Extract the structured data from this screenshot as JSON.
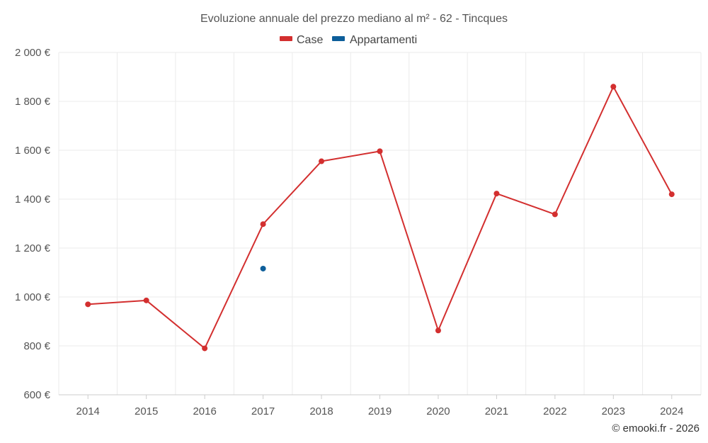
{
  "chart_data": {
    "type": "line",
    "title": "Evoluzione annuale del prezzo mediano al m² - 62 - Tincques",
    "categories": [
      "2014",
      "2015",
      "2016",
      "2017",
      "2018",
      "2019",
      "2020",
      "2021",
      "2022",
      "2023",
      "2024"
    ],
    "series": [
      {
        "name": "Case",
        "color": "#d32f2f",
        "values": [
          970,
          986,
          790,
          1298,
          1555,
          1596,
          863,
          1423,
          1338,
          1860,
          1420
        ]
      },
      {
        "name": "Appartamenti",
        "color": "#0d5e9a",
        "values": [
          null,
          null,
          null,
          1116,
          null,
          null,
          null,
          null,
          null,
          null,
          null
        ]
      }
    ],
    "ylim": [
      600,
      2000
    ],
    "yticks": [
      600,
      800,
      1000,
      1200,
      1400,
      1600,
      1800,
      2000
    ],
    "ytick_labels": [
      "600 €",
      "800 €",
      "1 000 €",
      "1 200 €",
      "1 400 €",
      "1 600 €",
      "1 800 €",
      "2 000 €"
    ],
    "xlabel": "",
    "ylabel": "",
    "grid": true,
    "legend_position": "top-center"
  },
  "credit": "© emooki.fr - 2026"
}
